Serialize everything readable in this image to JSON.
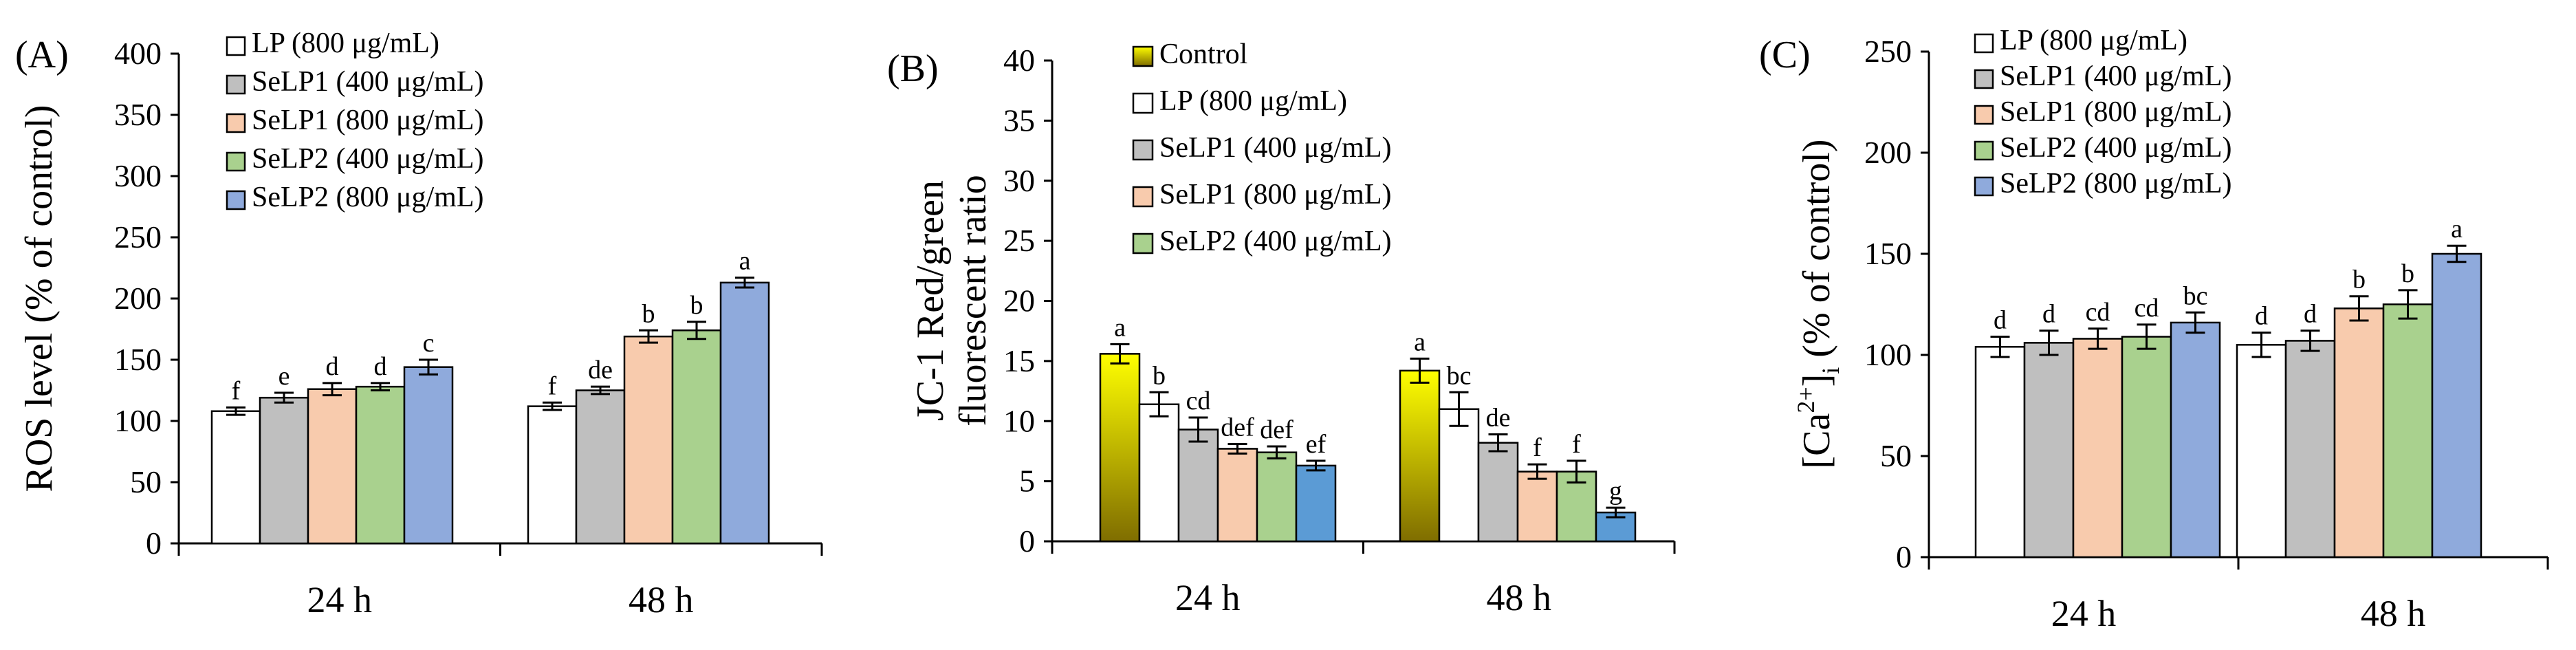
{
  "chart_data": [
    {
      "type": "bar",
      "panel_label": "(A)",
      "ylabel": "ROS level (% of control)",
      "ylim": [
        0,
        400
      ],
      "yticks": [
        "0",
        "50",
        "100",
        "150",
        "200",
        "250",
        "300",
        "350",
        "400"
      ],
      "categories": [
        "24 h",
        "48 h"
      ],
      "series": [
        {
          "name": "LP (800 μg/mL)",
          "color": "#ffffff",
          "values": [
            108,
            112
          ],
          "errors": [
            3,
            3
          ],
          "letters": [
            "f",
            "f"
          ]
        },
        {
          "name": "SeLP1 (400 μg/mL)",
          "color": "#bfbfbf",
          "values": [
            119,
            125
          ],
          "errors": [
            4,
            3
          ],
          "letters": [
            "e",
            "de"
          ]
        },
        {
          "name": "SeLP1 (800 μg/mL)",
          "color": "#f8cbad",
          "values": [
            126,
            169
          ],
          "errors": [
            5,
            5
          ],
          "letters": [
            "d",
            "b"
          ]
        },
        {
          "name": "SeLP2 (400 μg/mL)",
          "color": "#a9d18e",
          "values": [
            128,
            174
          ],
          "errors": [
            3,
            7
          ],
          "letters": [
            "d",
            "b"
          ]
        },
        {
          "name": "SeLP2 (800 μg/mL)",
          "color": "#8faadc",
          "values": [
            144,
            213
          ],
          "errors": [
            6,
            4
          ],
          "letters": [
            "c",
            "a"
          ]
        }
      ]
    },
    {
      "type": "bar",
      "panel_label": "(B)",
      "ylabel": [
        "JC-1 Red/green",
        "fluorescent ratio"
      ],
      "ylim": [
        0,
        40
      ],
      "yticks": [
        "0",
        "5",
        "10",
        "15",
        "20",
        "25",
        "30",
        "35",
        "40"
      ],
      "categories": [
        "24 h",
        "48 h"
      ],
      "series": [
        {
          "name": "Control",
          "color": "gradient-yellow",
          "values": [
            15.6,
            14.2
          ],
          "errors": [
            0.8,
            1.0
          ],
          "letters": [
            "a",
            "a"
          ]
        },
        {
          "name": "LP (800 μg/mL)",
          "color": "#ffffff",
          "values": [
            11.4,
            11.0
          ],
          "errors": [
            1.0,
            1.4
          ],
          "letters": [
            "b",
            "bc"
          ]
        },
        {
          "name": "SeLP1 (400 μg/mL)",
          "color": "#bfbfbf",
          "values": [
            9.3,
            8.2
          ],
          "errors": [
            1.0,
            0.7
          ],
          "letters": [
            "cd",
            "de"
          ]
        },
        {
          "name": "SeLP1 (800 μg/mL)",
          "color": "#f8cbad",
          "values": [
            7.7,
            5.8
          ],
          "errors": [
            0.4,
            0.6
          ],
          "letters": [
            "def",
            "f"
          ]
        },
        {
          "name": "SeLP2 (400 μg/mL)",
          "color": "#a9d18e",
          "values": [
            7.4,
            5.8
          ],
          "errors": [
            0.5,
            0.9
          ],
          "letters": [
            "def",
            "f"
          ]
        },
        {
          "name": "",
          "color": "#5b9bd5",
          "values": [
            6.3,
            2.4
          ],
          "errors": [
            0.4,
            0.4
          ],
          "letters": [
            "ef",
            "g"
          ]
        }
      ]
    },
    {
      "type": "bar",
      "panel_label": "(C)",
      "ylabel_prefix": "[Ca",
      "ylabel_sup": "2+",
      "ylabel_mid": "]",
      "ylabel_sub": "i",
      "ylabel_suffix": " (% of control)",
      "ylim": [
        0,
        250
      ],
      "yticks": [
        "0",
        "50",
        "100",
        "150",
        "200",
        "250"
      ],
      "categories": [
        "24 h",
        "48 h"
      ],
      "series": [
        {
          "name": "LP (800 μg/mL)",
          "color": "#ffffff",
          "values": [
            104,
            105
          ],
          "errors": [
            5,
            6
          ],
          "letters": [
            "d",
            "d"
          ]
        },
        {
          "name": "SeLP1 (400 μg/mL)",
          "color": "#bfbfbf",
          "values": [
            106,
            107
          ],
          "errors": [
            6,
            5
          ],
          "letters": [
            "d",
            "d"
          ]
        },
        {
          "name": "SeLP1 (800 μg/mL)",
          "color": "#f8cbad",
          "values": [
            108,
            123
          ],
          "errors": [
            5,
            6
          ],
          "letters": [
            "cd",
            "b"
          ]
        },
        {
          "name": "SeLP2 (400 μg/mL)",
          "color": "#a9d18e",
          "values": [
            109,
            125
          ],
          "errors": [
            6,
            7
          ],
          "letters": [
            "cd",
            "b"
          ]
        },
        {
          "name": "SeLP2 (800 μg/mL)",
          "color": "#8faadc",
          "values": [
            116,
            150
          ],
          "errors": [
            5,
            4
          ],
          "letters": [
            "bc",
            "a"
          ]
        }
      ]
    }
  ]
}
